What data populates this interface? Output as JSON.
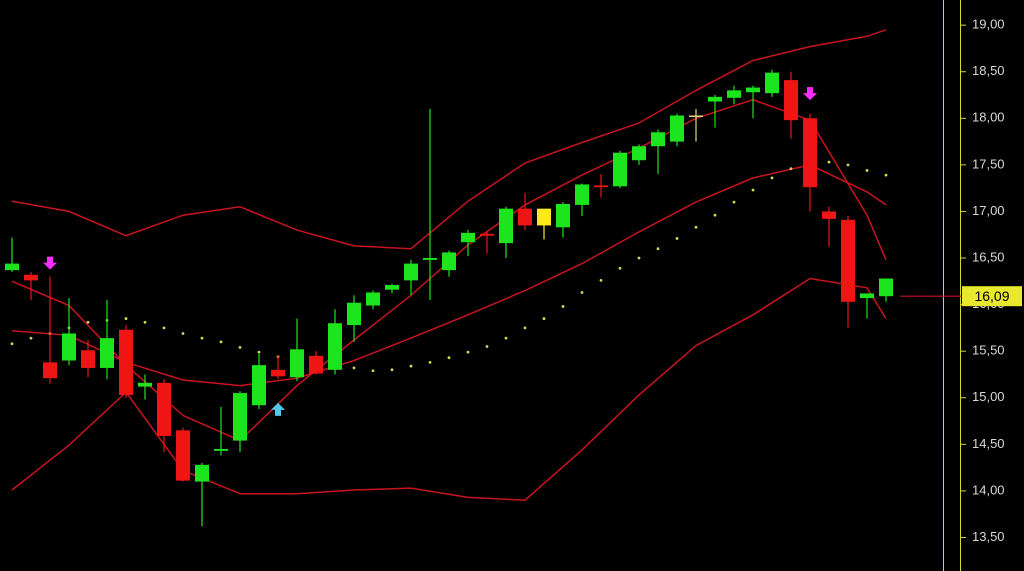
{
  "chart_data": {
    "type": "candlestick",
    "open": [
      16.37,
      16.32,
      15.38,
      15.4,
      15.51,
      15.32,
      15.73,
      15.12,
      15.16,
      14.65,
      14.1,
      14.43,
      14.54,
      14.92,
      15.3,
      15.22,
      15.45,
      15.3,
      15.78,
      15.99,
      16.16,
      16.26,
      16.48,
      16.37,
      16.67,
      16.76,
      16.66,
      17.03,
      16.85,
      16.83,
      17.07,
      17.28,
      17.27,
      17.55,
      17.7,
      17.75,
      18.02,
      18.18,
      18.22,
      18.28,
      18.27,
      18.41,
      18.0,
      17.0,
      16.91,
      16.07,
      16.09
    ],
    "high": [
      16.72,
      16.35,
      16.3,
      16.07,
      15.62,
      16.05,
      15.78,
      15.25,
      15.2,
      14.68,
      14.3,
      14.9,
      15.07,
      15.47,
      15.45,
      15.85,
      15.5,
      15.95,
      16.1,
      16.15,
      16.22,
      16.48,
      18.1,
      16.58,
      16.8,
      16.78,
      17.05,
      17.2,
      17.02,
      17.1,
      17.3,
      17.4,
      17.65,
      17.72,
      17.88,
      18.05,
      18.1,
      18.25,
      18.35,
      18.35,
      18.52,
      18.5,
      18.05,
      17.05,
      16.95,
      16.1,
      16.25
    ],
    "low": [
      16.35,
      16.05,
      15.15,
      15.35,
      15.22,
      15.2,
      15.0,
      14.98,
      14.42,
      14.1,
      13.62,
      14.38,
      14.42,
      14.88,
      15.2,
      15.18,
      15.25,
      15.25,
      15.6,
      15.95,
      16.12,
      16.1,
      16.05,
      16.3,
      16.52,
      16.55,
      16.5,
      16.8,
      16.7,
      16.72,
      16.95,
      17.15,
      17.25,
      17.5,
      17.4,
      17.7,
      17.75,
      17.9,
      18.15,
      18.0,
      18.23,
      17.78,
      17.0,
      16.62,
      15.75,
      15.85,
      16.03
    ],
    "close": [
      16.44,
      16.26,
      15.21,
      15.69,
      15.32,
      15.64,
      15.03,
      15.16,
      14.59,
      14.11,
      14.28,
      14.45,
      15.05,
      15.35,
      15.23,
      15.52,
      15.26,
      15.8,
      16.02,
      16.13,
      16.21,
      16.44,
      16.5,
      16.56,
      16.77,
      16.74,
      17.03,
      16.85,
      17.03,
      17.08,
      17.29,
      17.26,
      17.63,
      17.7,
      17.85,
      18.03,
      18.03,
      18.23,
      18.3,
      18.33,
      18.49,
      17.98,
      17.26,
      16.92,
      16.03,
      16.12,
      16.28
    ],
    "colors": [
      "#1de51d",
      "#f01515",
      "#f01515",
      "#1de51d",
      "#f01515",
      "#1de51d",
      "#f01515",
      "#1de51d",
      "#f01515",
      "#f01515",
      "#1de51d",
      "#1de51d",
      "#1de51d",
      "#1de51d",
      "#f01515",
      "#1de51d",
      "#f01515",
      "#1de51d",
      "#1de51d",
      "#1de51d",
      "#1de51d",
      "#1de51d",
      "#1de51d",
      "#1de51d",
      "#1de51d",
      "#f01515",
      "#1de51d",
      "#f01515",
      "#ffe81a",
      "#1de51d",
      "#1de51d",
      "#f01515",
      "#1de51d",
      "#1de51d",
      "#1de51d",
      "#1de51d",
      "#d8d880",
      "#1de51d",
      "#1de51d",
      "#1de51d",
      "#1de51d",
      "#f01515",
      "#f01515",
      "#f01515",
      "#f01515",
      "#1de51d",
      "#1de51d"
    ],
    "lines": [
      {
        "color": "#c8141e",
        "x": [
          0,
          3,
          6,
          9,
          12,
          15,
          18,
          21,
          24,
          27,
          30,
          33,
          36,
          39,
          42,
          45,
          46
        ],
        "values": [
          17.11,
          17.0,
          16.74,
          16.96,
          17.05,
          16.8,
          16.63,
          16.6,
          17.11,
          17.52,
          17.74,
          17.95,
          18.3,
          18.62,
          18.77,
          18.88,
          18.95
        ]
      },
      {
        "color": "#c8141e",
        "x": [
          0,
          3,
          6,
          9,
          12,
          15,
          18,
          21,
          24,
          27,
          30,
          33,
          36,
          39,
          42,
          45,
          46
        ],
        "values": [
          16.25,
          15.99,
          15.35,
          14.81,
          14.54,
          15.13,
          15.62,
          16.1,
          16.64,
          17.07,
          17.39,
          17.68,
          18.0,
          18.2,
          17.98,
          16.96,
          16.48
        ]
      },
      {
        "color": "#c8141e",
        "x": [
          0,
          3,
          6,
          9,
          12,
          15,
          18,
          21,
          24,
          27,
          30,
          33,
          36,
          39,
          42,
          45,
          46
        ],
        "values": [
          15.72,
          15.67,
          15.38,
          15.19,
          15.13,
          15.21,
          15.4,
          15.64,
          15.89,
          16.15,
          16.44,
          16.78,
          17.1,
          17.36,
          17.5,
          17.21,
          17.07
        ]
      },
      {
        "color": "#c8141e",
        "x": [
          0,
          3,
          6,
          9,
          12,
          15,
          18,
          21,
          24,
          27,
          30,
          33,
          36,
          39,
          42,
          45,
          46
        ],
        "values": [
          14.01,
          14.49,
          15.06,
          14.22,
          13.97,
          13.97,
          14.01,
          14.03,
          13.93,
          13.9,
          14.44,
          15.03,
          15.56,
          15.89,
          16.28,
          16.18,
          15.85
        ]
      }
    ],
    "dots": {
      "color": "#d6d65a",
      "values": [
        15.58,
        15.64,
        15.69,
        15.75,
        15.81,
        15.83,
        15.85,
        15.81,
        15.75,
        15.69,
        15.64,
        15.6,
        15.54,
        15.49,
        15.44,
        15.4,
        15.36,
        15.34,
        15.32,
        15.29,
        15.3,
        15.34,
        15.38,
        15.43,
        15.49,
        15.55,
        15.64,
        15.75,
        15.85,
        15.98,
        16.13,
        16.26,
        16.39,
        16.5,
        16.6,
        16.71,
        16.83,
        16.96,
        17.1,
        17.23,
        17.36,
        17.46,
        17.55,
        17.53,
        17.5,
        17.44,
        17.39
      ]
    },
    "signals": [
      {
        "index": 2,
        "value": 16.45,
        "direction": "down",
        "color": "#ff2cff"
      },
      {
        "index": 14,
        "value": 14.87,
        "direction": "up",
        "color": "#50c8e6"
      },
      {
        "index": 42,
        "value": 18.27,
        "direction": "down",
        "color": "#ff2cff"
      }
    ],
    "last": {
      "value": 16.09,
      "label": "16,09",
      "color": "#e8e830",
      "line_color": "#c8141e"
    },
    "ylim": [
      13.14,
      19.27
    ],
    "yticks": [
      {
        "value": 13.5,
        "label": "13,50"
      },
      {
        "value": 14,
        "label": "14,00"
      },
      {
        "value": 14.5,
        "label": "14,50"
      },
      {
        "value": 15,
        "label": "15,00"
      },
      {
        "value": 15.5,
        "label": "15,50"
      },
      {
        "value": 16,
        "label": "16,00"
      },
      {
        "value": 16.5,
        "label": "16,50"
      },
      {
        "value": 17,
        "label": "17,00"
      },
      {
        "value": 17.5,
        "label": "17,50"
      },
      {
        "value": 18,
        "label": "18,00"
      },
      {
        "value": 18.5,
        "label": "18,50"
      },
      {
        "value": 19,
        "label": "19,00"
      }
    ]
  }
}
